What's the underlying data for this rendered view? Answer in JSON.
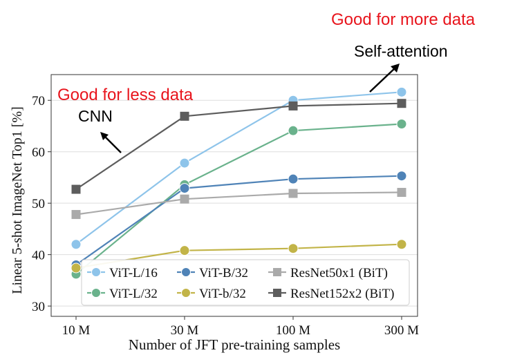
{
  "chart_data": {
    "type": "line",
    "xlabel": "Number of JFT pre-training samples",
    "ylabel": "Linear 5-shot ImageNet Top1 [%]",
    "categories": [
      "10 M",
      "30 M",
      "100 M",
      "300 M"
    ],
    "ylim": [
      28,
      75
    ],
    "yticks": [
      30,
      40,
      50,
      60,
      70
    ],
    "grid": true,
    "legend_position": "bottom-right",
    "series": [
      {
        "name": "ViT-L/16",
        "color": "#8ec4ea",
        "marker": "circle",
        "values": [
          42.0,
          57.8,
          70.0,
          71.6
        ]
      },
      {
        "name": "ViT-L/32",
        "color": "#6ab28c",
        "marker": "circle",
        "values": [
          36.2,
          53.6,
          64.1,
          65.4
        ]
      },
      {
        "name": "ViT-B/32",
        "color": "#4f83b7",
        "marker": "circle",
        "values": [
          38.0,
          52.9,
          54.7,
          55.3
        ]
      },
      {
        "name": "ViT-b/32",
        "color": "#c2b448",
        "marker": "circle",
        "values": [
          37.4,
          40.8,
          41.2,
          42.0
        ]
      },
      {
        "name": "ResNet50x1 (BiT)",
        "color": "#aaaaaa",
        "marker": "square",
        "values": [
          47.8,
          50.8,
          51.9,
          52.1
        ]
      },
      {
        "name": "ResNet152x2 (BiT)",
        "color": "#5d5d5d",
        "marker": "square",
        "values": [
          52.7,
          66.9,
          68.9,
          69.4
        ]
      }
    ],
    "annotations": {
      "less_data_label": "Good for less data",
      "cnn_label": "CNN",
      "more_data_label": "Good for more data",
      "self_attention_label": "Self-attention"
    },
    "colors": {
      "annotation_red": "#e8141c",
      "arrow": "#000000"
    }
  }
}
